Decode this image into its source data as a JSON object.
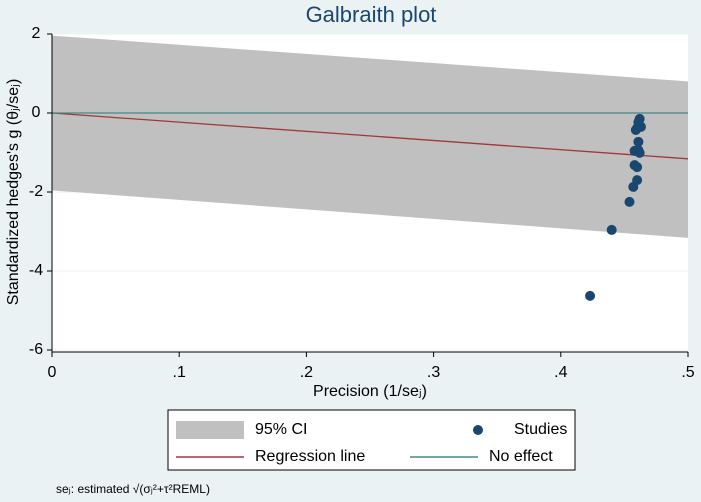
{
  "chart_data": {
    "type": "scatter",
    "title": "Galbraith plot",
    "xlabel": "Precision (1/seⱼ)",
    "ylabel": "Standardized hedges's g (θⱼ/seⱼ)",
    "note": "seⱼ: estimated √(σⱼ²+τ²REML)",
    "xlim": [
      0,
      0.5
    ],
    "ylim": [
      -6,
      2
    ],
    "xticks": [
      0,
      {
        "value": 0.1,
        "label": ".1"
      },
      {
        "value": 0.2,
        "label": ".2"
      },
      {
        "value": 0.3,
        "label": ".3"
      },
      {
        "value": 0.4,
        "label": ".4"
      },
      {
        "value": 0.5,
        "label": ".5"
      }
    ],
    "yticks": [
      -6,
      -4,
      -2,
      0,
      2
    ],
    "grid": true,
    "series": [
      {
        "name": "95% CI",
        "kind": "band",
        "color": "#c0c0c0",
        "x": [
          0,
          0.5
        ],
        "upper": [
          1.96,
          0.8
        ],
        "lower": [
          -1.96,
          -3.16
        ]
      },
      {
        "name": "Studies",
        "kind": "points",
        "color": "#1a476f",
        "x": [
          0.423,
          0.44,
          0.454,
          0.457,
          0.46,
          0.46,
          0.458,
          0.461,
          0.458,
          0.462,
          0.461,
          0.46,
          0.462,
          0.459,
          0.462,
          0.461,
          0.463
        ],
        "values": [
          -4.63,
          -2.96,
          -2.25,
          -1.87,
          -1.7,
          -1.37,
          -1.32,
          -0.94,
          -0.96,
          -1.01,
          -0.73,
          -0.38,
          -0.33,
          -0.43,
          -0.15,
          -0.23,
          -0.35
        ]
      },
      {
        "name": "Regression line",
        "kind": "line",
        "color": "#a0373a",
        "x": [
          0,
          0.5
        ],
        "values": [
          0,
          -1.16
        ]
      },
      {
        "name": "No effect",
        "kind": "line",
        "color": "#4a8585",
        "x": [
          0,
          0.5
        ],
        "values": [
          0,
          0
        ]
      }
    ]
  }
}
